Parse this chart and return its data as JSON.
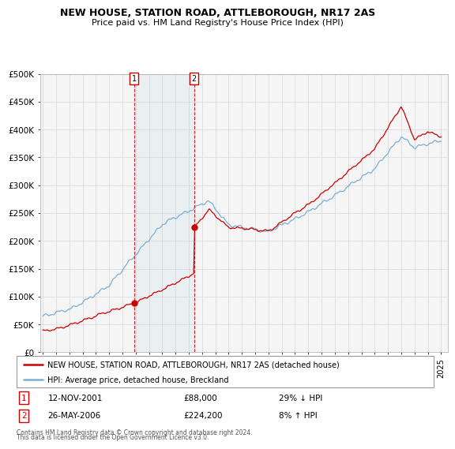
{
  "title": "NEW HOUSE, STATION ROAD, ATTLEBOROUGH, NR17 2AS",
  "subtitle": "Price paid vs. HM Land Registry's House Price Index (HPI)",
  "legend_line1": "NEW HOUSE, STATION ROAD, ATTLEBOROUGH, NR17 2AS (detached house)",
  "legend_line2": "HPI: Average price, detached house, Breckland",
  "annotation1_date": "12-NOV-2001",
  "annotation1_price": "£88,000",
  "annotation1_hpi": "29% ↓ HPI",
  "annotation2_date": "26-MAY-2006",
  "annotation2_price": "£224,200",
  "annotation2_hpi": "8% ↑ HPI",
  "footnote1": "Contains HM Land Registry data © Crown copyright and database right 2024.",
  "footnote2": "This data is licensed under the Open Government Licence v3.0.",
  "house_color": "#cc0000",
  "hpi_color": "#7bafd4",
  "background_color": "#ffffff",
  "chart_bg": "#f5f5f5",
  "grid_color": "#d8d8d8",
  "ylim": [
    0,
    500000
  ],
  "yticks": [
    0,
    50000,
    100000,
    150000,
    200000,
    250000,
    300000,
    350000,
    400000,
    450000,
    500000
  ],
  "sale1_x": 2001.87,
  "sale1_y": 88000,
  "sale2_x": 2006.4,
  "sale2_y": 224200,
  "xmin": 1994.8,
  "xmax": 2025.5
}
